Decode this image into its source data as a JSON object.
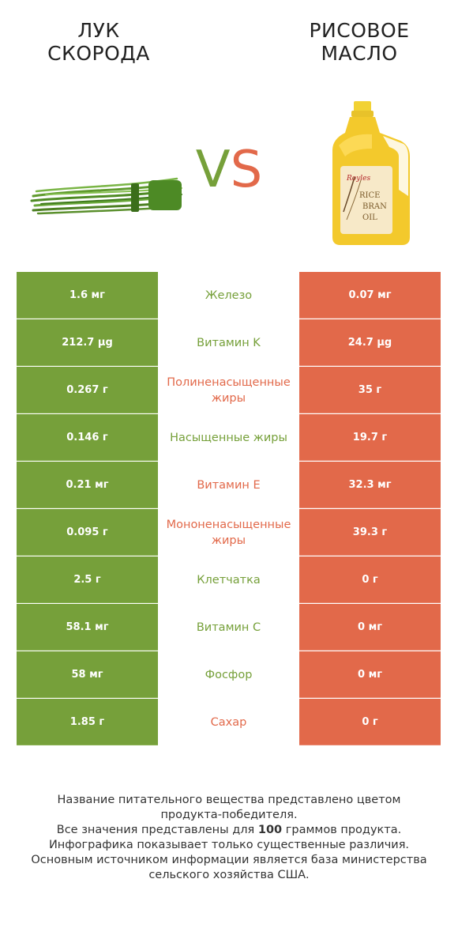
{
  "left_product": {
    "title": "ЛУК\nСКОРОДА",
    "title_line1": "ЛУК",
    "title_line2": "СКОРОДА",
    "image": "chives-image",
    "color": "#76a03a"
  },
  "right_product": {
    "title_line1": "РИСОВОЕ",
    "title_line2": "МАСЛО",
    "image": "rice-bran-oil-bottle-image",
    "label_brand": "Royles",
    "label_text": [
      "RICE",
      "BRAN",
      "OIL"
    ],
    "color": "#e2694a"
  },
  "vs": {
    "v": "V",
    "s": "S"
  },
  "rows": [
    {
      "left": "1.6 мг",
      "nutrient": "Железо",
      "right": "0.07 мг",
      "winner": "left"
    },
    {
      "left": "212.7 µg",
      "nutrient": "Витамин K",
      "right": "24.7 µg",
      "winner": "left"
    },
    {
      "left": "0.267 г",
      "nutrient": "Полиненасыщенные жиры",
      "right": "35 г",
      "winner": "right"
    },
    {
      "left": "0.146 г",
      "nutrient": "Насыщенные жиры",
      "right": "19.7 г",
      "winner": "left"
    },
    {
      "left": "0.21 мг",
      "nutrient": "Витамин E",
      "right": "32.3 мг",
      "winner": "right"
    },
    {
      "left": "0.095 г",
      "nutrient": "Мононенасыщенные жиры",
      "right": "39.3 г",
      "winner": "right"
    },
    {
      "left": "2.5 г",
      "nutrient": "Клетчатка",
      "right": "0 г",
      "winner": "left"
    },
    {
      "left": "58.1 мг",
      "nutrient": "Витамин C",
      "right": "0 мг",
      "winner": "left"
    },
    {
      "left": "58 мг",
      "nutrient": "Фосфор",
      "right": "0 мг",
      "winner": "left"
    },
    {
      "left": "1.85 г",
      "nutrient": "Сахар",
      "right": "0 г",
      "winner": "right"
    }
  ],
  "footer": {
    "line1": "Название питательного вещества представлено цветом",
    "line2": "продукта-победителя.",
    "line3_pre": "Все значения представлены для ",
    "line3_bold": "100",
    "line3_post": " граммов продукта.",
    "line4": "Инфографика показывает только существенные различия.",
    "line5": "Основным источником информации является база министерства",
    "line6": "сельского хозяйства США."
  }
}
